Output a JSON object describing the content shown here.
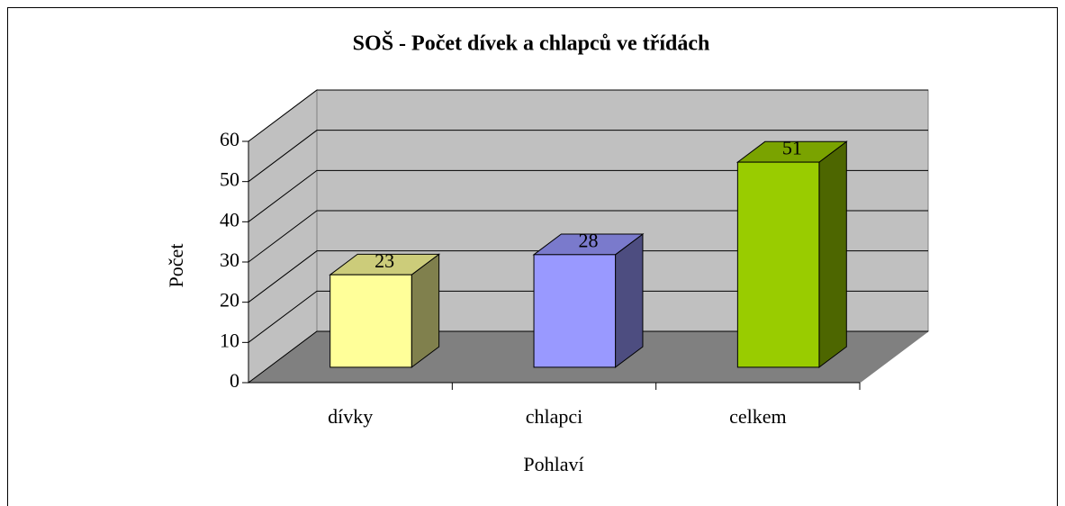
{
  "chart_data": {
    "type": "bar3d",
    "title": "SOŠ - Počet dívek a chlapců ve třídách",
    "x_label": "Pohlaví",
    "y_label": "Počet",
    "categories": [
      "dívky",
      "chlapci",
      "celkem"
    ],
    "values": [
      23,
      28,
      51
    ],
    "colors": [
      "#ffff99",
      "#9999ff",
      "#99cc00"
    ],
    "ylim": [
      0,
      60
    ],
    "yticks": [
      0,
      10,
      20,
      30,
      40,
      50,
      60
    ],
    "grid": true
  }
}
